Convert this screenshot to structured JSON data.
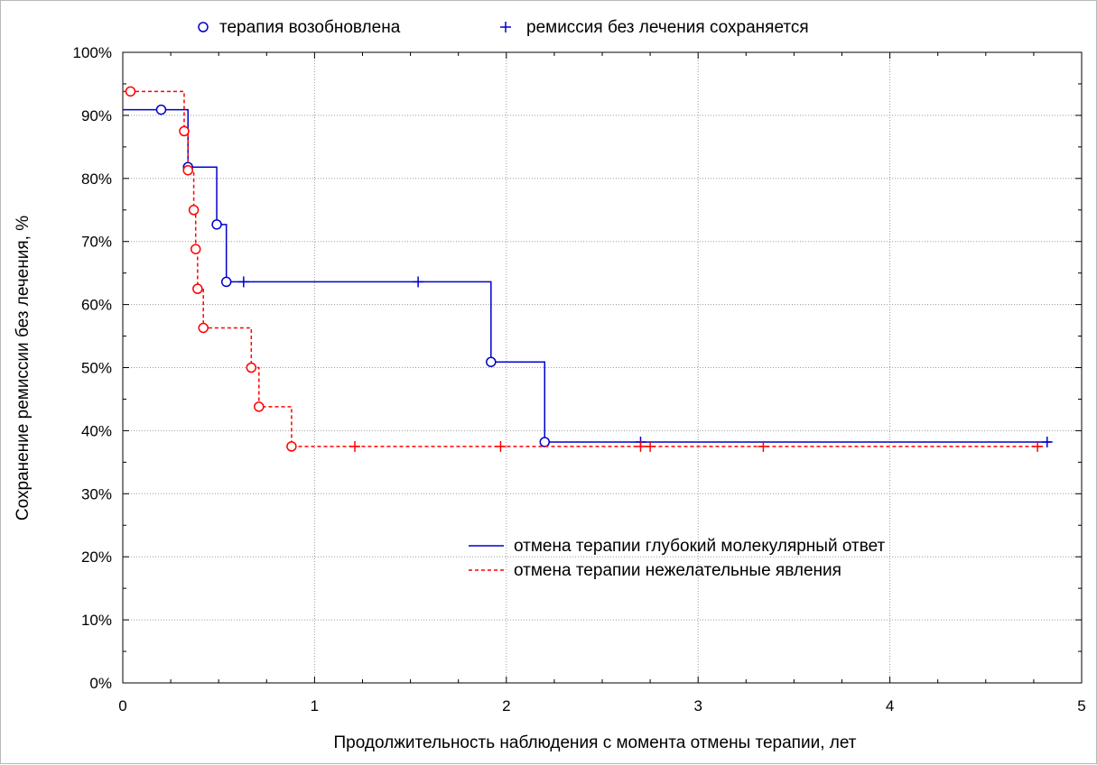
{
  "chart_data": {
    "type": "line",
    "xlabel": "Продолжительность наблюдения с момента отмены терапии, лет",
    "ylabel": "Сохранение ремиссии без лечения, %",
    "xlim": [
      0,
      5
    ],
    "ylim": [
      0,
      100
    ],
    "x_ticks": [
      "0",
      "1",
      "2",
      "3",
      "4",
      "5"
    ],
    "y_ticks": [
      "0%",
      "10%",
      "20%",
      "30%",
      "40%",
      "50%",
      "60%",
      "70%",
      "80%",
      "90%",
      "100%"
    ],
    "grid": true,
    "marker_legend": {
      "placement": "top",
      "events_label": "терапия возобновлена",
      "censored_label": "ремиссия без лечения сохраняется"
    },
    "series_legend_placement": "lower-right",
    "series": [
      {
        "name": "отмена терапии глубокий молекулярный ответ",
        "color": "#0000cc",
        "line_style": "solid",
        "steps": [
          [
            0,
            90.9
          ],
          [
            0.34,
            81.8
          ],
          [
            0.49,
            72.7
          ],
          [
            0.54,
            63.6
          ],
          [
            1.92,
            50.9
          ],
          [
            2.2,
            38.2
          ],
          [
            4.84,
            38.2
          ]
        ],
        "events": [
          [
            0.2,
            90.9
          ],
          [
            0.34,
            81.8
          ],
          [
            0.49,
            72.7
          ],
          [
            0.54,
            63.6
          ],
          [
            1.92,
            50.9
          ],
          [
            2.2,
            38.2
          ]
        ],
        "censored": [
          [
            0.63,
            63.6
          ],
          [
            1.54,
            63.6
          ],
          [
            2.7,
            38.2
          ],
          [
            4.82,
            38.2
          ]
        ]
      },
      {
        "name": "отмена терапии нежелательные явления",
        "color": "#ff0000",
        "line_style": "dashed",
        "steps": [
          [
            0,
            93.8
          ],
          [
            0.32,
            87.5
          ],
          [
            0.34,
            81.3
          ],
          [
            0.37,
            75.0
          ],
          [
            0.38,
            68.8
          ],
          [
            0.39,
            62.5
          ],
          [
            0.42,
            56.3
          ],
          [
            0.67,
            50.0
          ],
          [
            0.71,
            43.8
          ],
          [
            0.88,
            37.5
          ],
          [
            4.8,
            37.5
          ]
        ],
        "events": [
          [
            0.04,
            93.8
          ],
          [
            0.32,
            87.5
          ],
          [
            0.34,
            81.3
          ],
          [
            0.37,
            75.0
          ],
          [
            0.38,
            68.8
          ],
          [
            0.39,
            62.5
          ],
          [
            0.42,
            56.3
          ],
          [
            0.67,
            50.0
          ],
          [
            0.71,
            43.8
          ],
          [
            0.88,
            37.5
          ]
        ],
        "censored": [
          [
            1.21,
            37.5
          ],
          [
            1.97,
            37.5
          ],
          [
            2.7,
            37.5
          ],
          [
            2.75,
            37.5
          ],
          [
            3.34,
            37.5
          ],
          [
            4.77,
            37.5
          ]
        ]
      }
    ]
  }
}
